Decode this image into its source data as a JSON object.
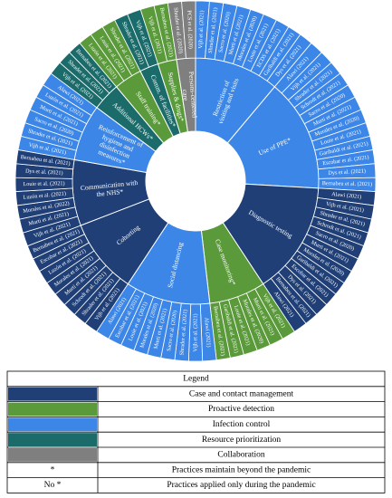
{
  "chart_data": {
    "type": "sunburst",
    "practices": [
      {
        "label": "Restriction of visiting and visits",
        "color": "#3b86e6",
        "references": [
          "Vijh et al. (2021)",
          "Shrader et al. (2021)",
          "Sacro et al. (2020)",
          "Murti et al. (2021)",
          "Morales et al. (2020)",
          "Louie et al. (2021)",
          "ECDS et al. (2021)",
          "Garibaldi et al. (2021)",
          "Dys et al. (2021)"
        ]
      },
      {
        "label": "Use of PPE*",
        "color": "#3b86e6",
        "references": [
          "Alawi (2021)",
          "Vijh et al. (2021)",
          "Shrader et al. (2021)",
          "Schrodt et al. (2021)",
          "Sacro et al. (2020)",
          "Murti et al. (2021)",
          "Morales et al. (2020)",
          "Louie et al. (2021)",
          "Garibaldi et al. (2021)",
          "Escobar et al. (2021)",
          "Dys et al. (2021)",
          "Bernabeu et al. (2021)"
        ]
      },
      {
        "label": "Diagnostic testing",
        "color": "#1f3f76",
        "references": [
          "Alawi (2021)",
          "Vijh et al. (2021)",
          "Shrader et al. (2021)",
          "Schrodt et al. (2021)",
          "Sacro et al. (2020)",
          "Murti et al. (2021)",
          "Morales et al. (2020)",
          "Garibaldi et al. (2021)",
          "Escobar et al. (2021)",
          "Dys et al. (2021)",
          "Bernabeu et al. (2021)",
          "Alawi (2021)"
        ]
      },
      {
        "label": "Case monitoring*",
        "color": "#5b9a3b",
        "references": [
          "Vijh et al. (2021)",
          "Murti et al. (2021)",
          "Morales et al. (2020)",
          "Louie et al. (2021)",
          "Garibaldi et al. (2021)",
          "Bernabeu et al. (2021)"
        ]
      },
      {
        "label": "Social distancing",
        "color": "#3b86e6",
        "references": [
          "Alawi (2021)",
          "Vijh et al. (2021)",
          "Shrader et al. (2021)",
          "Sacro et al. (2020)",
          "Murti et al. (2021)",
          "Morales et al. (2020)",
          "Louie et al. (2021)",
          "Escobar et al. (2021)",
          "Alawi (2021)"
        ]
      },
      {
        "label": "Cohorting",
        "color": "#1f3f76",
        "references": [
          "Vijh et al. (2021)",
          "Shrader et al. (2021)",
          "Schrodt et al. (2021)",
          "Murti et al. (2021)",
          "Morales et al. (2021)",
          "Luzón et al. (2021)",
          "Escobar et al. (2021)",
          "Bernabeu et al. (2021)"
        ]
      },
      {
        "label": "Communication with the NHS*",
        "color": "#1f3f76",
        "references": [
          "Vijh et al. (2021)",
          "Murti et al. (2021)",
          "Morales et al. (2022)",
          "Luzón et al. (2021)",
          "Louie et al. (2021)",
          "Dys et al. (2021)",
          "Bernabeu et al. (2021)"
        ]
      },
      {
        "label": "Reinforcement of hygiene and disinfection measures*",
        "color": "#3b86e6",
        "references": [
          "Vijh et al. (2021)",
          "Shrader et al. (2021)",
          "Sacro et al. (2020)",
          "Murti et al. (2021)",
          "Luzón et al. (2021)",
          "Alawi (2021)"
        ]
      },
      {
        "label": "Additional HCWs*",
        "color": "#1c6b6b",
        "references": [
          "Vijh et al. (2021)",
          "Shrader et al. (2021)",
          "Bernabeu et al. (2021)"
        ]
      },
      {
        "label": "Staff training*",
        "color": "#5b9a3b",
        "references": [
          "Luzón et al. (2021)",
          "Louie et al. (2021)",
          "Shrader et al. (2021)"
        ]
      },
      {
        "label": "Comm. of facilities*",
        "color": "#1c6b6b",
        "references": [
          "Shrader et al. (2021)",
          "Vijh et al. (2021)"
        ]
      },
      {
        "label": "Supplies & drugs*",
        "color": "#5b9a3b",
        "references": [
          "Vijh et al. (2021)",
          "Bernabeu et al. (2021)"
        ]
      },
      {
        "label": "Persons-centered care",
        "color": "#7f7f7f",
        "references": [
          "Shrader et al. (2020)",
          "PCS et al. (2020)"
        ]
      }
    ],
    "legend": {
      "title": "Legend",
      "items": [
        {
          "color": "#1f3f76",
          "label": "Case and contact management"
        },
        {
          "color": "#5b9a3b",
          "label": "Proactive detection"
        },
        {
          "color": "#3b86e6",
          "label": "Infection control"
        },
        {
          "color": "#1c6b6b",
          "label": "Resource prioritization"
        },
        {
          "color": "#7f7f7f",
          "label": "Collaboration"
        }
      ],
      "notes": [
        {
          "symbol": "*",
          "label": "Practices maintain beyond the pandemic"
        },
        {
          "symbol": "No *",
          "label": "Practices applied only during the pandemic"
        }
      ]
    }
  }
}
